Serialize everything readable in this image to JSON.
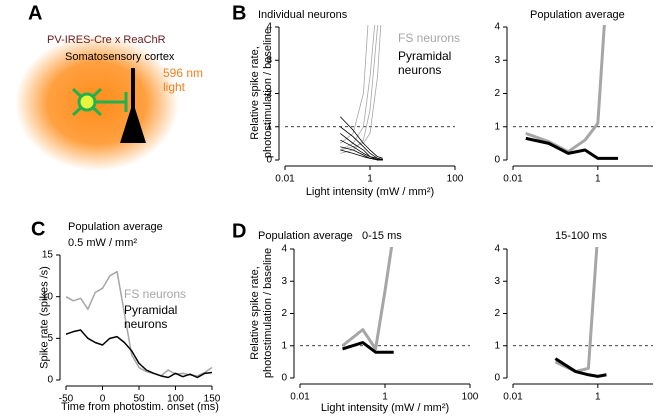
{
  "panel_a": {
    "letter": "A",
    "mouse_line": "PV-IRES-Cre x ReaChR",
    "region": "Somatosensory cortex",
    "light": "596 nm light"
  },
  "chart_data": [
    {
      "type": "line",
      "panel_label": "B",
      "title": "Individual neurons",
      "xlabel": "Light intensity (mW / mm²)",
      "ylabel": "Relative spike rate, photostimulation / baseline",
      "xscale": "log",
      "xlim": [
        0.01,
        100
      ],
      "xticks": [
        0.01,
        1,
        100
      ],
      "ylim": [
        0,
        4
      ],
      "yticks": [
        0,
        1,
        2,
        3,
        4
      ],
      "hline": 1,
      "x": [
        0.2,
        0.4,
        0.7,
        1,
        1.5,
        2
      ],
      "series": [
        {
          "name": "FS neurons",
          "color": "#a6a6a6",
          "lines": [
            [
              0.3,
              0.5,
              1,
              2.5,
              5,
              null
            ],
            [
              0.2,
              0.3,
              0.6,
              1.5,
              4,
              6
            ],
            [
              0.5,
              0.8,
              2,
              5,
              null,
              null
            ],
            [
              0.3,
              0.4,
              0.5,
              0.8,
              2.5,
              5
            ]
          ]
        },
        {
          "name": "Pyramidal neurons",
          "color": "#000000",
          "lines": [
            [
              1.3,
              0.9,
              0.5,
              0.3,
              0.1,
              0.05
            ],
            [
              1.0,
              0.7,
              0.4,
              0.2,
              0.05,
              0.02
            ],
            [
              0.8,
              0.5,
              0.3,
              0.1,
              0.05,
              0
            ],
            [
              0.6,
              0.4,
              0.2,
              0.1,
              0,
              0
            ],
            [
              0.4,
              0.3,
              0.15,
              0.05,
              0,
              0
            ],
            [
              0.3,
              0.2,
              0.1,
              0.05,
              0.02,
              0
            ]
          ]
        }
      ]
    },
    {
      "type": "line",
      "title": "Population average",
      "xscale": "log",
      "xlim": [
        0.01,
        20
      ],
      "xticks": [
        0.01,
        1
      ],
      "ylim": [
        0,
        4
      ],
      "yticks": [
        0,
        1,
        2,
        3,
        4
      ],
      "hline": 1,
      "x": [
        0.02,
        0.07,
        0.2,
        0.5,
        1,
        1.5,
        3
      ],
      "series": [
        {
          "color": "#a6a6a6",
          "values": [
            0.8,
            0.55,
            0.25,
            0.6,
            1.1,
            4.5,
            null
          ]
        },
        {
          "color": "#000000",
          "values": [
            0.65,
            0.5,
            0.2,
            0.3,
            0.05,
            0.05,
            0.05
          ]
        }
      ]
    },
    {
      "type": "line",
      "panel_label": "C",
      "title": "Population average",
      "subtitle": "0.5 mW / mm²",
      "xlabel": "Time from photostim. onset (ms)",
      "ylabel": "Spike rate (spikes /s)",
      "xlim": [
        -50,
        150
      ],
      "xticks": [
        -50,
        0,
        50,
        100,
        150
      ],
      "ylim": [
        0,
        15
      ],
      "yticks": [
        0,
        5,
        10,
        15
      ],
      "x": [
        -50,
        -40,
        -30,
        -20,
        -10,
        0,
        10,
        20,
        30,
        40,
        50,
        60,
        70,
        80,
        90,
        100,
        110,
        120,
        130,
        140,
        150
      ],
      "series": [
        {
          "name": "FS neurons",
          "color": "#a6a6a6",
          "values": [
            10,
            9.5,
            9.8,
            8.5,
            10.5,
            11,
            12.5,
            13,
            8,
            3,
            1.5,
            1,
            0.8,
            0.5,
            1.2,
            0.7,
            0.8,
            0.6,
            0.5,
            0.9,
            1.5
          ]
        },
        {
          "name": "Pyramidal neurons",
          "color": "#000000",
          "values": [
            5.5,
            5.8,
            6,
            5,
            4.5,
            4.2,
            5,
            5.2,
            4.5,
            3.5,
            2,
            1.2,
            0.8,
            0.5,
            0.3,
            0.8,
            0.4,
            0.7,
            0.3,
            0.8,
            0.9
          ]
        }
      ]
    },
    {
      "type": "line",
      "panel_label": "D",
      "title": "Population average",
      "subtitle": "0-15 ms",
      "xlabel": "Light intensity (mW / mm²)",
      "ylabel": "Relative spike rate, photostimulation / baseline",
      "xscale": "log",
      "xlim": [
        0.01,
        100
      ],
      "xticks": [
        0.01,
        1,
        100
      ],
      "ylim": [
        0,
        4
      ],
      "yticks": [
        0,
        1,
        2,
        3,
        4
      ],
      "hline": 1,
      "x": [
        0.1,
        0.3,
        0.6,
        1,
        1.6
      ],
      "series": [
        {
          "color": "#a6a6a6",
          "values": [
            1.0,
            1.5,
            0.9,
            2.7,
            4.5
          ]
        },
        {
          "color": "#000000",
          "values": [
            0.9,
            1.1,
            0.8,
            0.8,
            0.8
          ]
        }
      ]
    },
    {
      "type": "line",
      "title": "15-100 ms",
      "xscale": "log",
      "xlim": [
        0.01,
        20
      ],
      "xticks": [
        0.01,
        1
      ],
      "ylim": [
        0,
        4
      ],
      "yticks": [
        0,
        1,
        2,
        3,
        4
      ],
      "hline": 1,
      "x": [
        0.1,
        0.3,
        0.6,
        1,
        1.6
      ],
      "series": [
        {
          "color": "#a6a6a6",
          "values": [
            0.5,
            0.2,
            0.3,
            4.5,
            null
          ]
        },
        {
          "color": "#000000",
          "values": [
            0.6,
            0.2,
            0.1,
            0.05,
            0.1
          ]
        }
      ]
    }
  ]
}
